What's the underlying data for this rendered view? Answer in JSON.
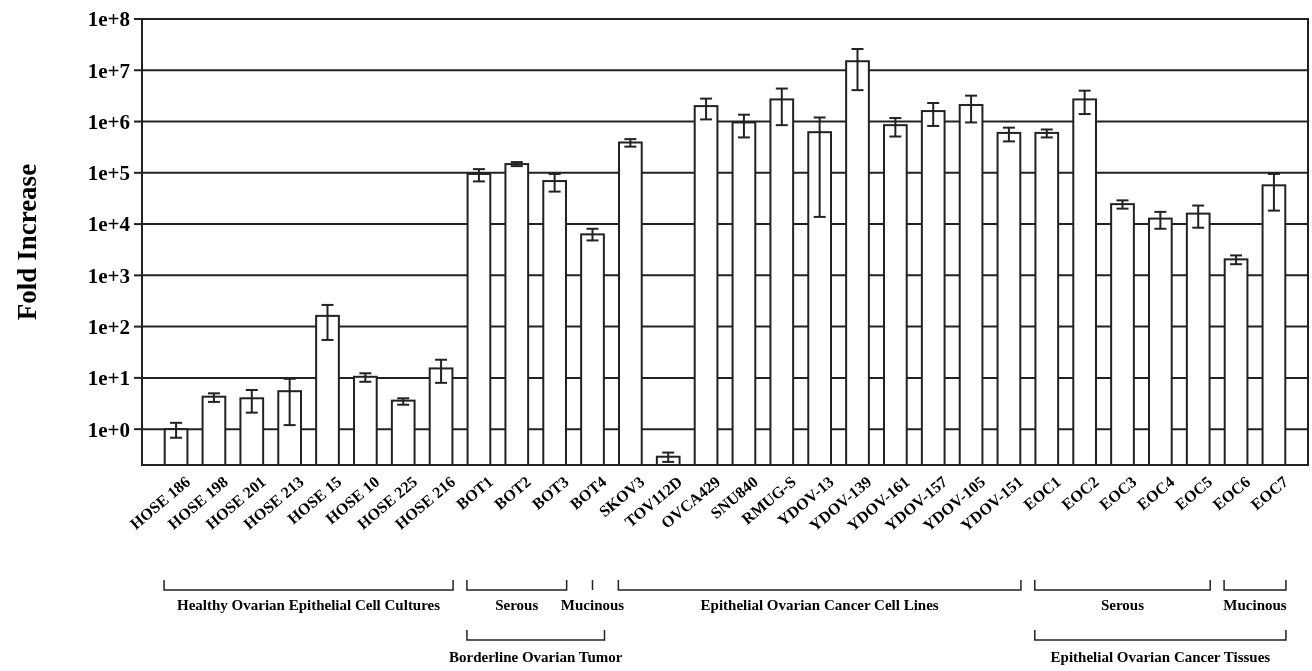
{
  "chart_data": {
    "type": "bar",
    "ylabel": "Fold Increase",
    "log": true,
    "grid": "y",
    "categories": [
      "HOSE 186",
      "HOSE 198",
      "HOSE 201",
      "HOSE 213",
      "HOSE 15",
      "HOSE 10",
      "HOSE 225",
      "HOSE 216",
      "BOT1",
      "BOT2",
      "BOT3",
      "BOT4",
      "SKOV3",
      "TOV112D",
      "OVCA429",
      "SNU840",
      "RMUG-S",
      "YDOV-13",
      "YDOV-139",
      "YDOV-161",
      "YDOV-157",
      "YDOV-105",
      "YDOV-151",
      "EOC1",
      "EOC2",
      "EOC3",
      "EOC4",
      "EOC5",
      "EOC6",
      "EOC7"
    ],
    "series": [
      {
        "color": "#ffffff",
        "values": [
          1,
          4.3,
          4.0,
          5.5,
          162,
          10.5,
          3.6,
          15.3,
          95000,
          148000,
          69000,
          6300,
          390000,
          0.29,
          2000000,
          960000,
          2700000,
          620000,
          15000000,
          850000,
          1600000,
          2100000,
          600000,
          600000,
          2700000,
          24500,
          12800,
          16000,
          2050,
          57000
        ],
        "errors": [
          [
            0.68,
            1.33
          ],
          [
            3.4,
            5.0
          ],
          [
            2.1,
            5.8
          ],
          [
            1.2,
            9.6
          ],
          [
            55,
            265
          ],
          [
            8.4,
            12.3
          ],
          [
            3.0,
            4.0
          ],
          [
            8.0,
            22.6
          ],
          [
            68000,
            118000
          ],
          [
            135000,
            162000
          ],
          [
            43000,
            95000
          ],
          [
            4800,
            8100
          ],
          [
            324000,
            454000
          ],
          [
            0.23,
            0.35
          ],
          [
            1100000,
            2800000
          ],
          [
            490000,
            1360000
          ],
          [
            850000,
            4400000
          ],
          [
            13800,
            1200000
          ],
          [
            4100000,
            26000000
          ],
          [
            510000,
            1170000
          ],
          [
            820000,
            2300000
          ],
          [
            960000,
            3200000
          ],
          [
            410000,
            760000
          ],
          [
            490000,
            700000
          ],
          [
            1400000,
            4000000
          ],
          [
            20000,
            29000
          ],
          [
            8100,
            17300
          ],
          [
            8500,
            23000
          ],
          [
            1650,
            2450
          ],
          [
            18300,
            95000
          ]
        ]
      }
    ],
    "ylim": [
      0.2,
      100000000
    ],
    "yticks": [
      {
        "value": 1,
        "label": "1e+0"
      },
      {
        "value": 10,
        "label": "1e+1"
      },
      {
        "value": 100,
        "label": "1e+2"
      },
      {
        "value": 1000,
        "label": "1e+3"
      },
      {
        "value": 10000,
        "label": "1e+4"
      },
      {
        "value": 100000,
        "label": "1e+5"
      },
      {
        "value": 1000000,
        "label": "1e+6"
      },
      {
        "value": 10000000,
        "label": "1e+7"
      },
      {
        "value": 100000000,
        "label": "1e+8"
      }
    ],
    "annotations": [
      "Healthy Ovarian Epithelial Cell Cultures",
      "Serous",
      "Mucinous",
      "Epithelial Ovarian Cancer Cell Lines",
      "Serous",
      "Mucinous",
      "Borderline Ovarian Tumor",
      "Epithelial Ovarian Cancer Tissues"
    ]
  }
}
